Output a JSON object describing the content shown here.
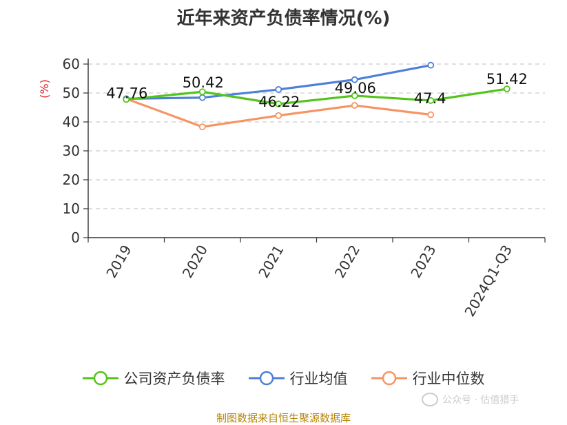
{
  "chart_data": {
    "type": "line",
    "title": "近年来资产负债率情况(%)",
    "ylabel": "(%)",
    "xlabel": "",
    "categories": [
      "2019",
      "2020",
      "2021",
      "2022",
      "2023",
      "2024Q1-Q3"
    ],
    "ylim": [
      0,
      60
    ],
    "yticks": [
      0,
      10,
      20,
      30,
      40,
      50,
      60
    ],
    "grid": true,
    "legend_position": "bottom",
    "series": [
      {
        "name": "公司资产负债率",
        "color": "#52c41a",
        "values": [
          47.76,
          50.42,
          46.22,
          49.06,
          47.4,
          51.42
        ],
        "show_labels": true
      },
      {
        "name": "行业均值",
        "color": "#4e7fdb",
        "values": [
          48.0,
          48.4,
          51.2,
          54.6,
          59.6,
          null
        ],
        "show_labels": false
      },
      {
        "name": "行业中位数",
        "color": "#f59564",
        "values": [
          48.0,
          38.3,
          42.2,
          45.7,
          42.5,
          null
        ],
        "show_labels": false
      }
    ]
  },
  "source_text": "制图数据来自恒生聚源数据库",
  "watermark_text": "公众号 · 估值猎手"
}
